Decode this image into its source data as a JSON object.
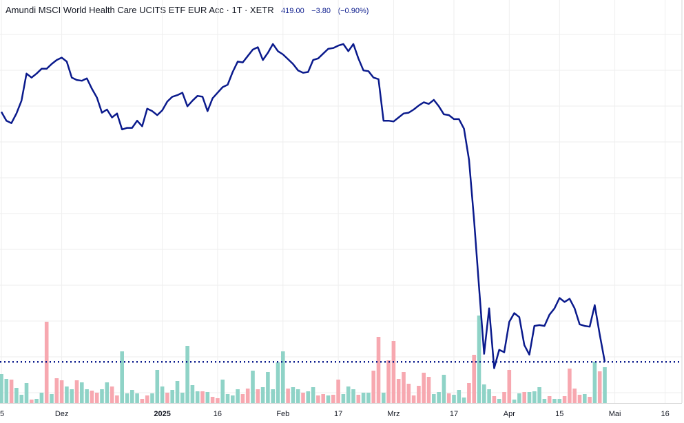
{
  "header": {
    "title": "Amundi MSCI World Health Care UCITS ETF EUR Acc · 1T · XETR",
    "price": "419.00",
    "change": "−3.80",
    "change_pct": "(−0.90%)"
  },
  "colors": {
    "line": "#0a1a8c",
    "volume_up": "#8fd3c7",
    "volume_down": "#f7a8b0",
    "grid": "#eeeeee",
    "price_line": "#0a1a8c"
  },
  "chart_data": {
    "type": "line",
    "series": [
      {
        "values": [
          450.3,
          449.2,
          448.9,
          450.1,
          451.7,
          455.1,
          454.6,
          455.1,
          455.7,
          455.7,
          456.3,
          456.8,
          457.1,
          456.6,
          454.6,
          454.3,
          454.2,
          454.5,
          453.2,
          452.1,
          450.2,
          450.6,
          449.6,
          450.1,
          448.1,
          448.3,
          448.3,
          449.2,
          448.5,
          450.7,
          450.4,
          449.9,
          450.5,
          451.6,
          452.2,
          452.4,
          452.7,
          451.0,
          451.7,
          452.3,
          452.2,
          450.4,
          452.0,
          452.7,
          453.4,
          453.7,
          455.3,
          456.6,
          456.5,
          457.3,
          458.1,
          458.4,
          456.8,
          457.7,
          458.8,
          457.9,
          457.5,
          456.9,
          456.3,
          455.5,
          455.2,
          455.3,
          456.8,
          457.0,
          457.6,
          458.2,
          458.3,
          458.6,
          458.8,
          457.9,
          458.8,
          457.0,
          455.5,
          455.4,
          454.6,
          454.4,
          449.2,
          449.2,
          449.1,
          449.6,
          450.1,
          450.2,
          450.6,
          451.1,
          451.5,
          451.3,
          451.8,
          451.0,
          450.0,
          449.9,
          449.4,
          449.4,
          448.2,
          444.3,
          436.8,
          428.3,
          420.0,
          425.7,
          418.2,
          420.5,
          420.2,
          424.0,
          425.1,
          424.6,
          421.1,
          419.9,
          423.5,
          423.6,
          423.5,
          424.9,
          425.7,
          427.0,
          426.5,
          426.9,
          425.7,
          423.7,
          423.5,
          423.4,
          426.1,
          422.4,
          419.0
        ]
      }
    ],
    "volume": [
      {
        "v": 42,
        "c": "up"
      },
      {
        "v": 35,
        "c": "up"
      },
      {
        "v": 34,
        "c": "down"
      },
      {
        "v": 22,
        "c": "up"
      },
      {
        "v": 12,
        "c": "up"
      },
      {
        "v": 29,
        "c": "up"
      },
      {
        "v": 5,
        "c": "down"
      },
      {
        "v": 6,
        "c": "up"
      },
      {
        "v": 15,
        "c": "up"
      },
      {
        "v": 118,
        "c": "down"
      },
      {
        "v": 13,
        "c": "up"
      },
      {
        "v": 36,
        "c": "down"
      },
      {
        "v": 33,
        "c": "down"
      },
      {
        "v": 24,
        "c": "up"
      },
      {
        "v": 20,
        "c": "up"
      },
      {
        "v": 33,
        "c": "down"
      },
      {
        "v": 30,
        "c": "up"
      },
      {
        "v": 20,
        "c": "up"
      },
      {
        "v": 18,
        "c": "down"
      },
      {
        "v": 15,
        "c": "down"
      },
      {
        "v": 20,
        "c": "up"
      },
      {
        "v": 30,
        "c": "up"
      },
      {
        "v": 24,
        "c": "down"
      },
      {
        "v": 11,
        "c": "down"
      },
      {
        "v": 75,
        "c": "up"
      },
      {
        "v": 14,
        "c": "up"
      },
      {
        "v": 19,
        "c": "up"
      },
      {
        "v": 14,
        "c": "up"
      },
      {
        "v": 6,
        "c": "down"
      },
      {
        "v": 11,
        "c": "down"
      },
      {
        "v": 14,
        "c": "up"
      },
      {
        "v": 48,
        "c": "up"
      },
      {
        "v": 24,
        "c": "up"
      },
      {
        "v": 15,
        "c": "down"
      },
      {
        "v": 19,
        "c": "up"
      },
      {
        "v": 32,
        "c": "up"
      },
      {
        "v": 15,
        "c": "up"
      },
      {
        "v": 83,
        "c": "up"
      },
      {
        "v": 26,
        "c": "up"
      },
      {
        "v": 17,
        "c": "up"
      },
      {
        "v": 17,
        "c": "down"
      },
      {
        "v": 16,
        "c": "up"
      },
      {
        "v": 9,
        "c": "down"
      },
      {
        "v": 7,
        "c": "down"
      },
      {
        "v": 34,
        "c": "up"
      },
      {
        "v": 13,
        "c": "up"
      },
      {
        "v": 11,
        "c": "up"
      },
      {
        "v": 20,
        "c": "up"
      },
      {
        "v": 13,
        "c": "down"
      },
      {
        "v": 21,
        "c": "down"
      },
      {
        "v": 47,
        "c": "up"
      },
      {
        "v": 20,
        "c": "down"
      },
      {
        "v": 23,
        "c": "up"
      },
      {
        "v": 45,
        "c": "up"
      },
      {
        "v": 20,
        "c": "up"
      },
      {
        "v": 59,
        "c": "up"
      },
      {
        "v": 75,
        "c": "up"
      },
      {
        "v": 21,
        "c": "down"
      },
      {
        "v": 23,
        "c": "up"
      },
      {
        "v": 20,
        "c": "up"
      },
      {
        "v": 15,
        "c": "down"
      },
      {
        "v": 17,
        "c": "up"
      },
      {
        "v": 23,
        "c": "up"
      },
      {
        "v": 11,
        "c": "down"
      },
      {
        "v": 13,
        "c": "down"
      },
      {
        "v": 11,
        "c": "up"
      },
      {
        "v": 12,
        "c": "down"
      },
      {
        "v": 34,
        "c": "down"
      },
      {
        "v": 13,
        "c": "up"
      },
      {
        "v": 24,
        "c": "up"
      },
      {
        "v": 20,
        "c": "up"
      },
      {
        "v": 12,
        "c": "down"
      },
      {
        "v": 15,
        "c": "up"
      },
      {
        "v": 15,
        "c": "up"
      },
      {
        "v": 47,
        "c": "down"
      },
      {
        "v": 96,
        "c": "down"
      },
      {
        "v": 15,
        "c": "up"
      },
      {
        "v": 62,
        "c": "down"
      },
      {
        "v": 90,
        "c": "down"
      },
      {
        "v": 35,
        "c": "down"
      },
      {
        "v": 45,
        "c": "down"
      },
      {
        "v": 28,
        "c": "down"
      },
      {
        "v": 11,
        "c": "down"
      },
      {
        "v": 25,
        "c": "down"
      },
      {
        "v": 44,
        "c": "down"
      },
      {
        "v": 38,
        "c": "down"
      },
      {
        "v": 13,
        "c": "up"
      },
      {
        "v": 16,
        "c": "up"
      },
      {
        "v": 41,
        "c": "up"
      },
      {
        "v": 14,
        "c": "down"
      },
      {
        "v": 12,
        "c": "up"
      },
      {
        "v": 19,
        "c": "up"
      },
      {
        "v": 8,
        "c": "up"
      },
      {
        "v": 29,
        "c": "down"
      },
      {
        "v": 70,
        "c": "down"
      },
      {
        "v": 127,
        "c": "up"
      },
      {
        "v": 27,
        "c": "up"
      },
      {
        "v": 20,
        "c": "up"
      },
      {
        "v": 10,
        "c": "down"
      },
      {
        "v": 6,
        "c": "up"
      },
      {
        "v": 16,
        "c": "down"
      },
      {
        "v": 48,
        "c": "down"
      },
      {
        "v": 5,
        "c": "up"
      },
      {
        "v": 14,
        "c": "up"
      },
      {
        "v": 16,
        "c": "down"
      },
      {
        "v": 16,
        "c": "up"
      },
      {
        "v": 17,
        "c": "up"
      },
      {
        "v": 23,
        "c": "up"
      },
      {
        "v": 6,
        "c": "up"
      },
      {
        "v": 10,
        "c": "down"
      },
      {
        "v": 6,
        "c": "up"
      },
      {
        "v": 6,
        "c": "up"
      },
      {
        "v": 10,
        "c": "down"
      },
      {
        "v": 50,
        "c": "down"
      },
      {
        "v": 21,
        "c": "down"
      },
      {
        "v": 12,
        "c": "down"
      },
      {
        "v": 13,
        "c": "up"
      },
      {
        "v": 9,
        "c": "down"
      },
      {
        "v": 60,
        "c": "up"
      },
      {
        "v": 46,
        "c": "down"
      },
      {
        "v": 52,
        "c": "up"
      }
    ],
    "x_labels": [
      {
        "text": "5",
        "index": 0,
        "bold": false
      },
      {
        "text": "Dez",
        "index": 12,
        "bold": false
      },
      {
        "text": "2025",
        "index": 32,
        "bold": true
      },
      {
        "text": "16",
        "index": 43,
        "bold": false
      },
      {
        "text": "Feb",
        "index": 56,
        "bold": false
      },
      {
        "text": "17",
        "index": 67,
        "bold": false
      },
      {
        "text": "Mrz",
        "index": 78,
        "bold": false
      },
      {
        "text": "17",
        "index": 90,
        "bold": false
      },
      {
        "text": "Apr",
        "index": 101,
        "bold": false
      },
      {
        "text": "15",
        "index": 111,
        "bold": false
      },
      {
        "text": "Mai",
        "index": 122,
        "bold": false
      },
      {
        "text": "16",
        "index": 132,
        "bold": false
      }
    ],
    "ylim": [
      416,
      460
    ],
    "last_price": 419.0,
    "grid": true
  }
}
